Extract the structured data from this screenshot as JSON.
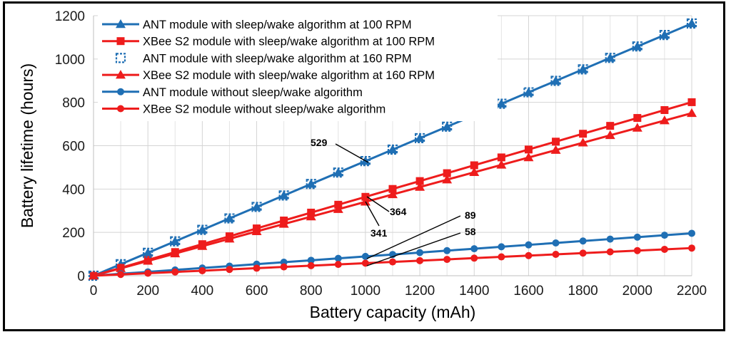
{
  "chart_data": {
    "type": "line",
    "title": "",
    "xlabel": "Battery capacity (mAh)",
    "ylabel": "Battery lifetime (hours)",
    "xlim": [
      0,
      2200
    ],
    "ylim": [
      0,
      1200
    ],
    "xticks": [
      0,
      200,
      400,
      600,
      800,
      1000,
      1200,
      1400,
      1600,
      1800,
      2000,
      2200
    ],
    "yticks": [
      0,
      200,
      400,
      600,
      800,
      1000,
      1200
    ],
    "grid": true,
    "legend_position": "top-left",
    "x": [
      0,
      100,
      200,
      300,
      400,
      500,
      600,
      700,
      800,
      900,
      1000,
      1100,
      1200,
      1300,
      1400,
      1500,
      1600,
      1700,
      1800,
      1900,
      2000,
      2100,
      2200
    ],
    "series": [
      {
        "name": "ANT module with sleep/wake algorithm at 100 RPM",
        "color": "#1f6fb4",
        "marker": "triangle",
        "line": true,
        "slope": 0.529
      },
      {
        "name": "XBee S2 module with sleep/wake algorithm at 100 RPM",
        "color": "#ee1c1c",
        "marker": "square",
        "line": true,
        "slope": 0.364
      },
      {
        "name": "ANT module with sleep/wake algorithm at 160 RPM",
        "color": "#1f6fb4",
        "marker": "open-square",
        "line": false,
        "slope": 0.529
      },
      {
        "name": "XBee S2 module with sleep/wake algorithm at 160 RPM",
        "color": "#ee1c1c",
        "marker": "triangle",
        "line": true,
        "slope": 0.341
      },
      {
        "name": "ANT module without sleep/wake algorithm",
        "color": "#1f6fb4",
        "marker": "circle",
        "line": true,
        "slope": 0.089
      },
      {
        "name": "XBee S2 module without sleep/wake algorithm",
        "color": "#ee1c1c",
        "marker": "circle",
        "line": true,
        "slope": 0.058
      }
    ],
    "annotations": [
      {
        "text": "529",
        "x": 1000,
        "y": 529
      },
      {
        "text": "364",
        "x": 1000,
        "y": 364
      },
      {
        "text": "341",
        "x": 1000,
        "y": 341
      },
      {
        "text": "89",
        "x": 1000,
        "y": 89
      },
      {
        "text": "58",
        "x": 1000,
        "y": 58
      }
    ]
  }
}
